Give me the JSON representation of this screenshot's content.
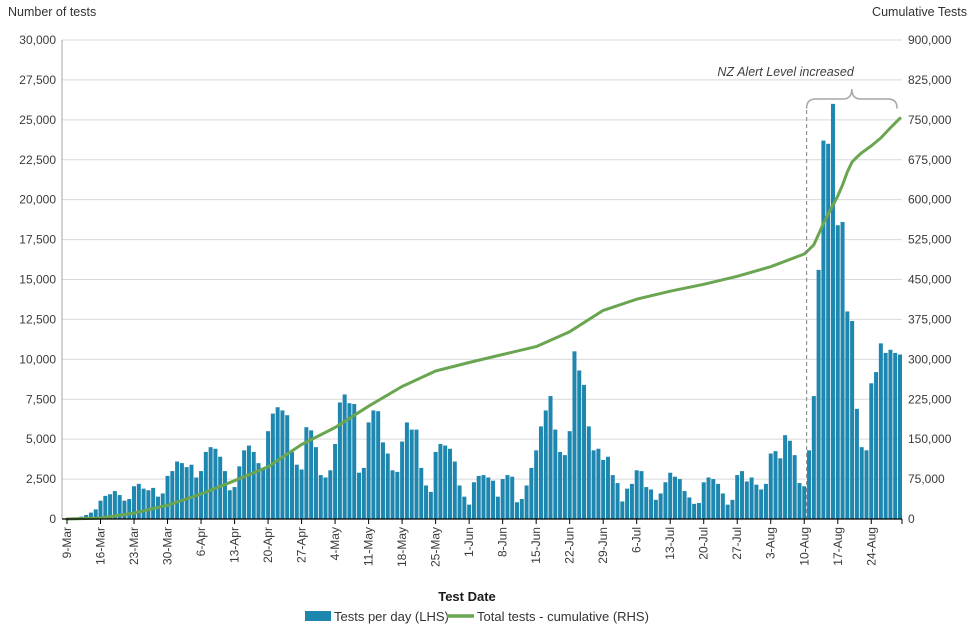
{
  "chart_data": {
    "type": "combo",
    "x": {
      "label": "Test Date",
      "start": "9-Mar",
      "end": "30-Aug",
      "tick_interval_days": 7,
      "tick_labels": [
        "9-Mar",
        "16-Mar",
        "23-Mar",
        "30-Mar",
        "6-Apr",
        "13-Apr",
        "20-Apr",
        "27-Apr",
        "4-May",
        "11-May",
        "18-May",
        "25-May",
        "1-Jun",
        "8-Jun",
        "15-Jun",
        "22-Jun",
        "29-Jun",
        "6-Jul",
        "13-Jul",
        "20-Jul",
        "27-Jul",
        "3-Aug",
        "10-Aug",
        "17-Aug",
        "24-Aug"
      ]
    },
    "left_axis": {
      "title": "Number of tests",
      "min": 0,
      "max": 30000,
      "step": 2500,
      "tick_labels": [
        "0",
        "2,500",
        "5,000",
        "7,500",
        "10,000",
        "12,500",
        "15,000",
        "17,500",
        "20,000",
        "22,500",
        "25,000",
        "27,500",
        "30,000"
      ]
    },
    "right_axis": {
      "title": "Cumulative Tests",
      "min": 0,
      "max": 900000,
      "step": 75000,
      "tick_labels": [
        "0",
        "75,000",
        "150,000",
        "225,000",
        "300,000",
        "375,000",
        "450,000",
        "525,000",
        "600,000",
        "675,000",
        "750,000",
        "825,000",
        "900,000"
      ]
    },
    "grid": "horizontal",
    "gridline_color": "#d9d9d9",
    "legend_position": "bottom",
    "series": [
      {
        "name": "Tests per day (LHS)",
        "type": "bar",
        "axis": "left",
        "color": "#1e87b0",
        "start_date": "9-Mar",
        "daily_values": [
          30,
          60,
          90,
          150,
          250,
          400,
          600,
          1150,
          1450,
          1550,
          1750,
          1500,
          1150,
          1250,
          2050,
          2200,
          1900,
          1800,
          1950,
          1400,
          1600,
          2700,
          3000,
          3600,
          3500,
          3250,
          3400,
          2600,
          3000,
          4200,
          4500,
          4400,
          3900,
          3000,
          1800,
          2000,
          3300,
          4300,
          4600,
          4200,
          3500,
          3200,
          5500,
          6600,
          7000,
          6800,
          6500,
          4200,
          3400,
          3100,
          5750,
          5550,
          4500,
          2750,
          2600,
          3050,
          4700,
          7300,
          7800,
          7250,
          7200,
          2900,
          3200,
          6050,
          6800,
          6750,
          4800,
          4100,
          3050,
          2950,
          4850,
          6050,
          5600,
          5600,
          3200,
          2100,
          1700,
          4200,
          4700,
          4600,
          4400,
          3600,
          2100,
          1400,
          900,
          2300,
          2700,
          2750,
          2600,
          2400,
          1400,
          2500,
          2750,
          2650,
          1050,
          1250,
          2100,
          3200,
          4300,
          5800,
          6800,
          7700,
          5600,
          4200,
          4000,
          5500,
          10500,
          9300,
          8400,
          5800,
          4300,
          4400,
          3700,
          3900,
          2750,
          2250,
          1100,
          1900,
          2200,
          3050,
          3000,
          2000,
          1850,
          1200,
          1600,
          2300,
          2900,
          2650,
          2500,
          1750,
          1350,
          950,
          1000,
          2300,
          2600,
          2500,
          2200,
          1600,
          900,
          1200,
          2750,
          3000,
          2350,
          2600,
          2150,
          1850,
          2200,
          4100,
          4250,
          3800,
          5250,
          4900,
          4000,
          2250,
          2050,
          4300,
          7700,
          15600,
          23700,
          23500,
          26000,
          18400,
          18600,
          13000,
          12400,
          6900,
          4500,
          4300,
          8500,
          9200,
          11000,
          10400,
          10600,
          10400,
          10300
        ]
      },
      {
        "name": "Total tests - cumulative (RHS)",
        "type": "line",
        "axis": "right",
        "color": "#6aa551",
        "points": [
          [
            "9-Mar",
            0
          ],
          [
            "16-Mar",
            1600
          ],
          [
            "23-Mar",
            11000
          ],
          [
            "30-Mar",
            26000
          ],
          [
            "6-Apr",
            47000
          ],
          [
            "13-Apr",
            72000
          ],
          [
            "20-Apr",
            98000
          ],
          [
            "27-Apr",
            140000
          ],
          [
            "4-May",
            172000
          ],
          [
            "11-May",
            212000
          ],
          [
            "18-May",
            249000
          ],
          [
            "25-May",
            278000
          ],
          [
            "1-Jun",
            294000
          ],
          [
            "8-Jun",
            309000
          ],
          [
            "15-Jun",
            324000
          ],
          [
            "22-Jun",
            352000
          ],
          [
            "29-Jun",
            392000
          ],
          [
            "6-Jul",
            413000
          ],
          [
            "13-Jul",
            428000
          ],
          [
            "20-Jul",
            441000
          ],
          [
            "27-Jul",
            456000
          ],
          [
            "3-Aug",
            474000
          ],
          [
            "10-Aug",
            498000
          ],
          [
            "12-Aug",
            515000
          ],
          [
            "14-Aug",
            555000
          ],
          [
            "16-Aug",
            590000
          ],
          [
            "17-Aug",
            607000
          ],
          [
            "18-Aug",
            628000
          ],
          [
            "19-Aug",
            652000
          ],
          [
            "20-Aug",
            671000
          ],
          [
            "21-Aug",
            680000
          ],
          [
            "22-Aug",
            688000
          ],
          [
            "24-Aug",
            701000
          ],
          [
            "26-Aug",
            716000
          ],
          [
            "28-Aug",
            735000
          ],
          [
            "30-Aug",
            753000
          ]
        ]
      }
    ],
    "annotation": {
      "text": "NZ Alert Level increased",
      "dashed_line_date": "11-Aug",
      "brace_span": [
        "11-Aug",
        "30-Aug"
      ],
      "line_color": "#7f7f7f",
      "brace_color": "#a6a6a6"
    }
  }
}
